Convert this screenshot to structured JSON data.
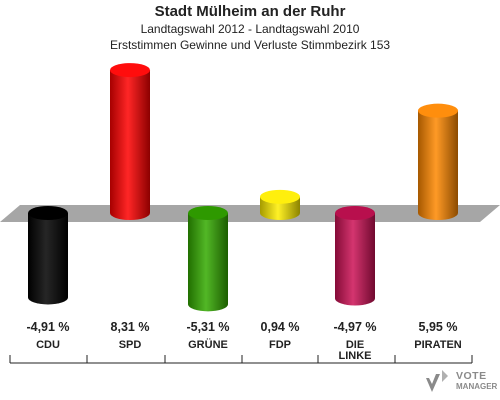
{
  "header": {
    "title": "Stadt Mülheim an der Ruhr",
    "subtitle1": "Landtagswahl 2012 - Landtagswahl 2010",
    "subtitle2": "Erststimmen Gewinne und Verluste Stimmbezirk 153"
  },
  "chart_data": {
    "type": "bar",
    "categories": [
      "CDU",
      "SPD",
      "GRÜNE",
      "FDP",
      "DIE LINKE",
      "PIRATEN"
    ],
    "values": [
      -4.91,
      8.31,
      -5.31,
      0.94,
      -4.97,
      5.95
    ],
    "value_labels": [
      "-4,91 %",
      "8,31 %",
      "-5,31 %",
      "0,94 %",
      "-4,97 %",
      "5,95 %"
    ],
    "colors": [
      "#000000",
      "#ff0000",
      "#33aa00",
      "#ffee00",
      "#cc1155",
      "#ff8800"
    ],
    "title": "Stadt Mülheim an der Ruhr",
    "xlabel": "",
    "ylabel": ""
  },
  "logo": {
    "line1": "VOTE",
    "line2": "MANAGER"
  }
}
